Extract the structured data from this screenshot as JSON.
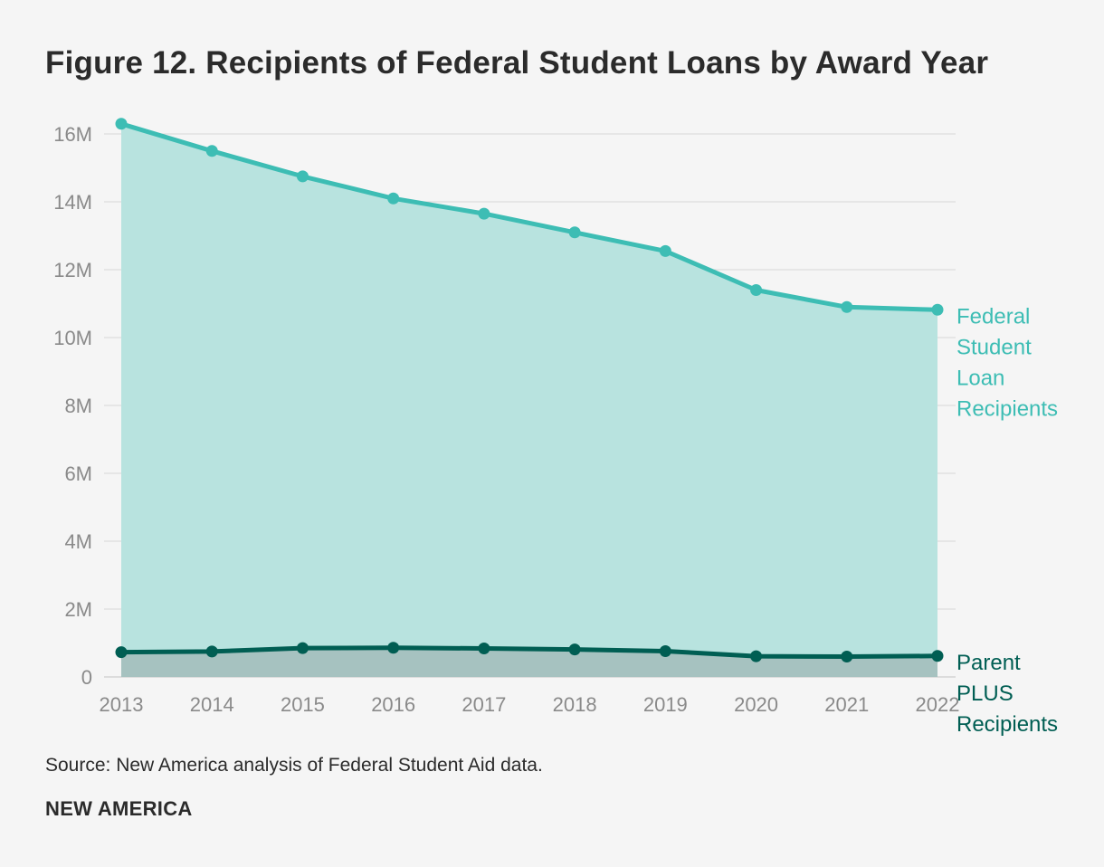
{
  "header": {
    "title": "Figure 12. Recipients of Federal Student Loans by Award Year"
  },
  "footer": {
    "source": "Source: New America analysis of Federal Student Aid data.",
    "brand": "NEW AMERICA"
  },
  "chart_data": {
    "type": "area",
    "title": "Figure 12. Recipients of Federal Student Loans by Award Year",
    "xlabel": "",
    "ylabel": "",
    "x": [
      "2013",
      "2014",
      "2015",
      "2016",
      "2017",
      "2018",
      "2019",
      "2020",
      "2021",
      "2022"
    ],
    "ylim": [
      0,
      16000000
    ],
    "yticks": [
      {
        "value": 0,
        "label": "0"
      },
      {
        "value": 2000000,
        "label": "2M"
      },
      {
        "value": 4000000,
        "label": "4M"
      },
      {
        "value": 6000000,
        "label": "6M"
      },
      {
        "value": 8000000,
        "label": "8M"
      },
      {
        "value": 10000000,
        "label": "10M"
      },
      {
        "value": 12000000,
        "label": "12M"
      },
      {
        "value": 14000000,
        "label": "14M"
      },
      {
        "value": 16000000,
        "label": "16M"
      }
    ],
    "grid": true,
    "series": [
      {
        "name": "Federal Student Loan Recipients",
        "label_lines": [
          "Federal",
          "Student",
          "Loan",
          "Recipients"
        ],
        "color": "#3dbdb4",
        "fill": "#b8e3df",
        "values": [
          16300000,
          15500000,
          14750000,
          14100000,
          13650000,
          13100000,
          12550000,
          11400000,
          10900000,
          10820000
        ]
      },
      {
        "name": "Parent PLUS Recipients",
        "label_lines": [
          "Parent",
          "PLUS",
          "Recipients"
        ],
        "color": "#005e53",
        "fill": "#a6c2c0",
        "values": [
          730000,
          750000,
          850000,
          860000,
          840000,
          810000,
          760000,
          610000,
          600000,
          620000
        ]
      }
    ]
  }
}
